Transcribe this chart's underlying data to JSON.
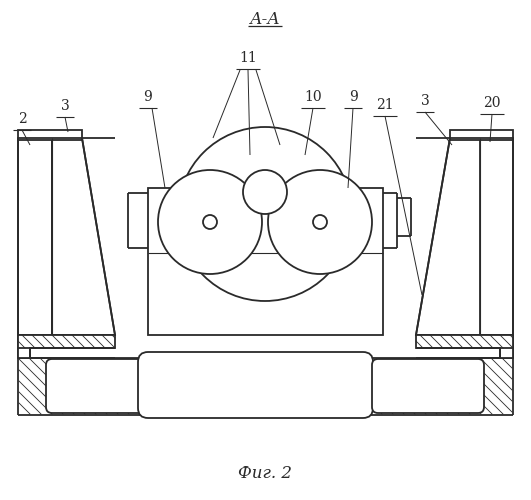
{
  "bg_color": "#ffffff",
  "line_color": "#2a2a2a",
  "title": "А-А",
  "caption": "Фиг. 2",
  "lw_main": 1.3,
  "lw_thin": 0.8,
  "lw_hatch": 0.6
}
